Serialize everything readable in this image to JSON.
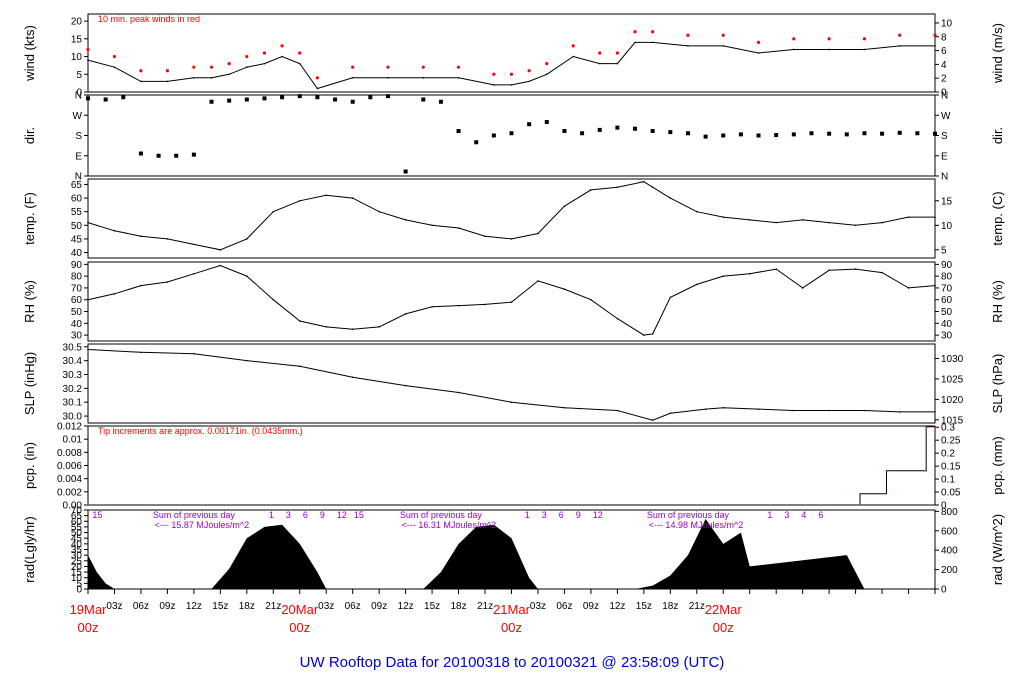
{
  "title": "UW Rooftop Data for 20100318  to  20100321 @ 23:58:09  (UTC)",
  "colors": {
    "trace": "#000000",
    "peak": "#ff0000",
    "annotation": "#ff0000",
    "radnote": "#9900cc",
    "footer": "#0000cc",
    "precip": "#ff0000"
  },
  "x_axis": {
    "hour_ticks": [
      "03z",
      "06z",
      "09z",
      "12z",
      "15z",
      "18z",
      "21z",
      "03z",
      "06z",
      "09z",
      "12z",
      "15z",
      "18z",
      "21z",
      "03z",
      "06z",
      "09z",
      "12z",
      "15z",
      "18z",
      "21z"
    ],
    "day_labels": [
      {
        "date": "19Mar",
        "hour": "00z"
      },
      {
        "date": "20Mar",
        "hour": "00z"
      },
      {
        "date": "21Mar",
        "hour": "00z"
      },
      {
        "date": "22Mar",
        "hour": "00z"
      }
    ]
  },
  "chart_data": [
    {
      "type": "line",
      "panel": "wind",
      "ylabel": "wind (kts)",
      "ylabel_right": "wind (m/s)",
      "annotation": "10 min. peak winds in red",
      "ylim": [
        0,
        22
      ],
      "yticks": [
        0,
        5,
        10,
        15,
        20
      ],
      "right_ylim": [
        0,
        11.3
      ],
      "right_yticks": [
        0,
        2,
        4,
        6,
        8,
        10
      ],
      "series": [
        {
          "x_hours": [
            0,
            3,
            6,
            9,
            12,
            14,
            16,
            18,
            20,
            22,
            24,
            26,
            30,
            34,
            38,
            42,
            46,
            48,
            50,
            52,
            55,
            58,
            60,
            62,
            64,
            68,
            72,
            76,
            80,
            84,
            88,
            92,
            96
          ],
          "values": [
            9,
            7,
            3,
            3,
            4,
            4,
            5,
            7,
            8,
            10,
            8,
            1,
            4,
            4,
            4,
            4,
            2,
            2,
            3,
            5,
            10,
            8,
            8,
            14,
            14,
            13,
            13,
            11,
            12,
            12,
            12,
            13,
            13
          ]
        }
      ]
    },
    {
      "type": "scatter",
      "panel": "dir",
      "ylabel": "dir.",
      "ylabel_right": "dir.",
      "yticks_labels": [
        "N",
        "E",
        "S",
        "W",
        "N"
      ],
      "series": [
        {
          "x_hours": [
            0,
            2,
            4,
            6,
            8,
            10,
            12,
            14,
            16,
            18,
            20,
            22,
            24,
            26,
            28,
            30,
            32,
            34,
            36,
            38,
            40,
            42,
            44,
            46,
            48,
            50,
            52,
            54,
            56,
            58,
            60,
            62,
            64,
            66,
            68,
            70,
            72,
            74,
            76,
            78,
            80,
            82,
            84,
            86,
            88,
            90,
            92,
            94,
            96
          ],
          "values": [
            345,
            340,
            350,
            100,
            90,
            90,
            95,
            330,
            335,
            340,
            345,
            350,
            355,
            350,
            340,
            330,
            350,
            355,
            20,
            340,
            330,
            200,
            150,
            180,
            190,
            230,
            240,
            200,
            190,
            205,
            215,
            210,
            200,
            195,
            190,
            175,
            180,
            185,
            180,
            182,
            185,
            190,
            188,
            185,
            190,
            188,
            192,
            190,
            188
          ]
        }
      ]
    },
    {
      "type": "line",
      "panel": "temp",
      "ylabel": "temp. (F)",
      "ylabel_right": "temp. (C)",
      "ylim": [
        38,
        67
      ],
      "yticks": [
        40,
        45,
        50,
        55,
        60,
        65
      ],
      "right_yticks": [
        5,
        10,
        15
      ],
      "series": [
        {
          "x_hours": [
            0,
            3,
            6,
            9,
            12,
            15,
            18,
            21,
            24,
            27,
            30,
            33,
            36,
            39,
            42,
            45,
            48,
            51,
            54,
            57,
            60,
            63,
            64,
            66,
            69,
            72,
            75,
            78,
            81,
            84,
            87,
            90,
            93,
            96
          ],
          "values": [
            51,
            48,
            46,
            45,
            43,
            41,
            45,
            55,
            59,
            61,
            60,
            55,
            52,
            50,
            49,
            46,
            45,
            47,
            57,
            63,
            64,
            66,
            64,
            60,
            55,
            53,
            52,
            51,
            52,
            51,
            50,
            51,
            53,
            53
          ]
        }
      ]
    },
    {
      "type": "line",
      "panel": "rh",
      "ylabel": "RH (%)",
      "ylabel_right": "RH (%)",
      "ylim": [
        25,
        92
      ],
      "yticks": [
        30,
        40,
        50,
        60,
        70,
        80,
        90
      ],
      "series": [
        {
          "x_hours": [
            0,
            3,
            6,
            9,
            12,
            15,
            18,
            21,
            24,
            27,
            30,
            33,
            36,
            39,
            42,
            45,
            48,
            51,
            54,
            57,
            60,
            63,
            64,
            66,
            69,
            72,
            75,
            78,
            81,
            84,
            87,
            90,
            93,
            96
          ],
          "values": [
            60,
            65,
            72,
            75,
            82,
            89,
            80,
            60,
            42,
            37,
            35,
            37,
            48,
            54,
            55,
            56,
            58,
            76,
            69,
            60,
            44,
            30,
            31,
            62,
            73,
            80,
            82,
            86,
            70,
            85,
            86,
            83,
            70,
            72
          ]
        }
      ]
    },
    {
      "type": "line",
      "panel": "slp",
      "ylabel": "SLP (inHg)",
      "ylabel_right": "SLP (hPa)",
      "ylim": [
        29.95,
        30.52
      ],
      "yticks": [
        30.0,
        30.1,
        30.2,
        30.3,
        30.4,
        30.5
      ],
      "right_yticks": [
        1015,
        1020,
        1025,
        1030
      ],
      "series": [
        {
          "x_hours": [
            0,
            6,
            12,
            18,
            24,
            30,
            36,
            42,
            48,
            54,
            60,
            64,
            66,
            70,
            72,
            76,
            80,
            84,
            88,
            92,
            96
          ],
          "values": [
            30.48,
            30.46,
            30.45,
            30.4,
            30.36,
            30.28,
            30.22,
            30.17,
            30.1,
            30.06,
            30.04,
            29.97,
            30.02,
            30.05,
            30.06,
            30.05,
            30.04,
            30.04,
            30.04,
            30.03,
            30.03
          ]
        }
      ]
    },
    {
      "type": "line",
      "panel": "pcp",
      "ylabel": "pcp. (in)",
      "ylabel_right": "pcp. (mm)",
      "annotation": "Tip increments are approx. 0.00171in. (0.0435mm.)",
      "ylim": [
        0,
        0.012
      ],
      "yticks": [
        0,
        0.002,
        0.004,
        0.006,
        0.008,
        0.01,
        0.012
      ],
      "right_yticks": [
        0,
        0.05,
        0.1,
        0.15,
        0.2,
        0.25,
        0.3
      ],
      "series": [
        {
          "x_hours": [
            0,
            87.5,
            87.5,
            90.5,
            90.5,
            95,
            95,
            96
          ],
          "values": [
            0,
            0,
            0.0017,
            0.0017,
            0.0052,
            0.0052,
            0.0119,
            0.0119
          ]
        }
      ]
    },
    {
      "type": "area",
      "panel": "rad",
      "ylabel": "rad(Lgly/hr)",
      "ylabel_right": "rad (W/m^2)",
      "ylim": [
        0,
        70
      ],
      "yticks": [
        0,
        5,
        10,
        15,
        20,
        25,
        30,
        35,
        40,
        45,
        50,
        55,
        60,
        65,
        70
      ],
      "right_yticks": [
        0,
        200,
        400,
        600,
        800
      ],
      "day_sums": [
        {
          "label": "Sum of previous day",
          "value": "<--- 15.87 MJoules/m^2"
        },
        {
          "label": "Sum of previous day",
          "value": "<--- 16.31 MJoules/m^2"
        },
        {
          "label": "Sum of previous day",
          "value": "<--- 14.98 MJoules/m^2"
        }
      ],
      "hour_marks": [
        {
          "labels": [
            "15"
          ]
        },
        {
          "labels": [
            "1",
            "3",
            "6",
            "9",
            "12",
            "15"
          ]
        },
        {
          "labels": [
            "1",
            "3",
            "6",
            "9",
            "12"
          ]
        },
        {
          "labels": [
            "1",
            "3",
            "4",
            "6"
          ]
        }
      ],
      "series": [
        {
          "x_hours": [
            0,
            1,
            2,
            3,
            14,
            16,
            18,
            20,
            22,
            24,
            26,
            27,
            38,
            40,
            42,
            44,
            46,
            48,
            50,
            51,
            62,
            64,
            66,
            68,
            70,
            72,
            74,
            75,
            86,
            88,
            90,
            92,
            94,
            96
          ],
          "values": [
            30,
            15,
            5,
            0,
            0,
            18,
            45,
            55,
            57,
            40,
            15,
            0,
            0,
            15,
            40,
            55,
            57,
            45,
            10,
            0,
            0,
            3,
            12,
            30,
            62,
            40,
            50,
            20,
            30,
            0,
            0,
            0,
            0,
            0
          ]
        }
      ]
    }
  ]
}
